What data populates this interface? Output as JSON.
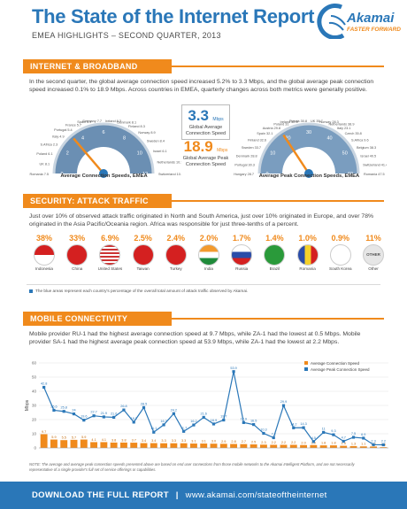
{
  "header": {
    "title": "The State of the Internet Report",
    "subtitle": "EMEA HIGHLIGHTS – SECOND QUARTER, 2013",
    "logo_word": "Akamai",
    "logo_tag": "FASTER FORWARD"
  },
  "adoption": {
    "heading": "INTERNET & BROADBAND ADOPTION",
    "paragraph": "In the second quarter, the global average connection speed increased 5.2% to 3.3 Mbps, and the global average peak connection speed increased 0.1% to 18.9 Mbps. Across countries in EMEA, quarterly changes across both metrics were generally positive.",
    "avg_gauge": {
      "label": "Average Connection Speeds, EMEA",
      "unit": "Mbps",
      "ticks": [
        "0",
        "2",
        "4",
        "6",
        "8",
        "10",
        "12"
      ],
      "countries": [
        "Germany 7.7",
        "Spain 5.9",
        "France 5.7",
        "Portugal 5.4",
        "Italy 4.9",
        "S.Africa 2.3",
        "Poland 6.1",
        "UK 8.1",
        "Romania 7.5",
        "Ireland 8.3",
        "Denmark 8.1",
        "Finland 8.3",
        "Norway 8.9",
        "Sweden 8.4",
        "Israel 6.1",
        "Netherlands 10.1",
        "Switzerland 10.1"
      ]
    },
    "global_avg": {
      "value": "3.3",
      "unit": "Mbps",
      "label": "Global Average Connection Speed"
    },
    "global_peak": {
      "value": "18.9",
      "unit": "Mbps",
      "label": "Global Average Peak Connection Speed"
    },
    "peak_gauge": {
      "label": "Average Peak Connection Speeds, EMEA",
      "unit": "Mbps",
      "ticks": [
        "0",
        "10",
        "20",
        "30",
        "40",
        "50",
        "60"
      ],
      "countries": [
        "Russia 30.8",
        "Ireland 32.6",
        "Poland 31",
        "Austria 29.8",
        "Spain 32.1",
        "Finland 32.6",
        "Sweden 33.7",
        "Denmark 28.8",
        "Portugal 30.3",
        "Hungary 28.7",
        "UK 35.7",
        "Norway 28.3",
        "Netherlands 38.9",
        "Italy 23.1",
        "Czech 35.8",
        "S.Africa 9.6",
        "Belgium 38.3",
        "Israel 40.5",
        "Switzerland 41.4",
        "Romania 47.5"
      ]
    }
  },
  "security": {
    "heading": "SECURITY: ATTACK TRAFFIC",
    "paragraph": "Just over 10% of observed attack traffic originated in North and South America, just over 10% originated in Europe, and over 78% originated in the Asia Pacific/Oceania region. Africa was responsible for just three-tenths of a percent.",
    "countries": [
      {
        "pct": "38%",
        "name": "Indonesia"
      },
      {
        "pct": "33%",
        "name": "China"
      },
      {
        "pct": "6.9%",
        "name": "United States"
      },
      {
        "pct": "2.5%",
        "name": "Taiwan"
      },
      {
        "pct": "2.4%",
        "name": "Turkey"
      },
      {
        "pct": "2.0%",
        "name": "India"
      },
      {
        "pct": "1.7%",
        "name": "Russia"
      },
      {
        "pct": "1.4%",
        "name": "Brazil"
      },
      {
        "pct": "1.0%",
        "name": "Romania"
      },
      {
        "pct": "0.9%",
        "name": "South Korea"
      },
      {
        "pct": "11%",
        "name": "Other"
      }
    ],
    "other_label": "OTHER",
    "note": "The blue areas represent each country's percentage of the overall total amount of attack traffic observed by Akamai."
  },
  "mobile": {
    "heading": "MOBILE CONNECTIVITY",
    "paragraph": "Mobile provider RU-1 had the highest average connection speed at 9.7 Mbps, while ZA-1 had the lowest at 0.5 Mbps. Mobile provider SA-1 had the highest average peak connection speed at 53.9 Mbps, while ZA-1 had the lowest at 2.2 Mbps.",
    "footnote": "NOTE: The average and average peak connection speeds presented above are based on end user connections from those mobile networks to the Akamai Intelligent Platform, and are not necessarily representative of a single provider's full set of service offerings or capabilities."
  },
  "footer": {
    "label": "DOWNLOAD THE FULL REPORT",
    "url": "www.akamai.com/stateoftheinternet"
  },
  "colors": {
    "blue": "#2a77b8",
    "orange": "#f08a1c",
    "gauge_fill": "#6b8fb3",
    "peak_fill": "#7a9dbf"
  },
  "chart_data": {
    "type": "line",
    "title": "",
    "xlabel": "",
    "ylabel": "Mbps",
    "ylim": [
      0,
      60
    ],
    "yticks": [
      0,
      10,
      20,
      30,
      40,
      50,
      60
    ],
    "legend": "top-right",
    "series": [
      {
        "name": "Average Connection Speed",
        "color": "#f08a1c",
        "values": [
          9.7,
          5.9,
          5.5,
          5.7,
          5.9,
          4.1,
          4.1,
          3.8,
          3.8,
          3.7,
          3.4,
          3.4,
          3.3,
          3.3,
          3.3,
          3.1,
          3.1,
          3.0,
          2.9,
          2.8,
          2.7,
          2.5,
          2.3,
          2.2,
          2.2,
          2.2,
          2.0,
          2.0,
          1.8,
          1.8,
          1.5,
          1.3,
          1.1,
          1.0,
          0.5
        ],
        "labels": [
          "9.7",
          "5.9",
          "5.5",
          "5.7",
          "5.9",
          "4.1",
          "4.1",
          "3.8",
          "3.8",
          "3.7",
          "3.4",
          "3.4",
          "3.3",
          "3.3",
          "3.3",
          "3.1",
          "3.1",
          "3.0",
          "2.9",
          "2.8",
          "2.7",
          "2.5",
          "2.3",
          "2.2",
          "2.2",
          "2.2",
          "2.0",
          "2.0",
          "1.8",
          "1.8",
          "1.5",
          "1.3",
          "1.1",
          "1.0",
          "0.5"
        ]
      },
      {
        "name": "Average Peak Connection Speed",
        "color": "#2a77b8",
        "values": [
          42.8,
          26.6,
          25.8,
          24.0,
          19.6,
          22.7,
          21.9,
          21.6,
          26.8,
          18.2,
          28.5,
          11.1,
          16.3,
          24.2,
          11.7,
          16.2,
          21.6,
          16.9,
          19.7,
          53.9,
          17.9,
          16.5,
          10.3,
          7.2,
          29.9,
          14.2,
          14.3,
          4.5,
          11.0,
          9.3,
          4.7,
          7.5,
          6.9,
          2.3,
          2.2
        ],
        "labels": [
          "42.8",
          "26.6",
          "25.8",
          "24",
          "19.6",
          "22.7",
          "21.9",
          "21.6",
          "26.8",
          "18.2",
          "28.5",
          "11.1",
          "16.3",
          "24.2",
          "11.7",
          "16.2",
          "21.6",
          "16.9",
          "19.7",
          "53.9",
          "17.9",
          "16.5",
          "10.3",
          "7.2",
          "29.9",
          "14.2",
          "14.3",
          "4.5",
          "11",
          "9.3",
          "4.7",
          "7.5",
          "6.9",
          "2.3",
          "2.2"
        ]
      }
    ]
  }
}
